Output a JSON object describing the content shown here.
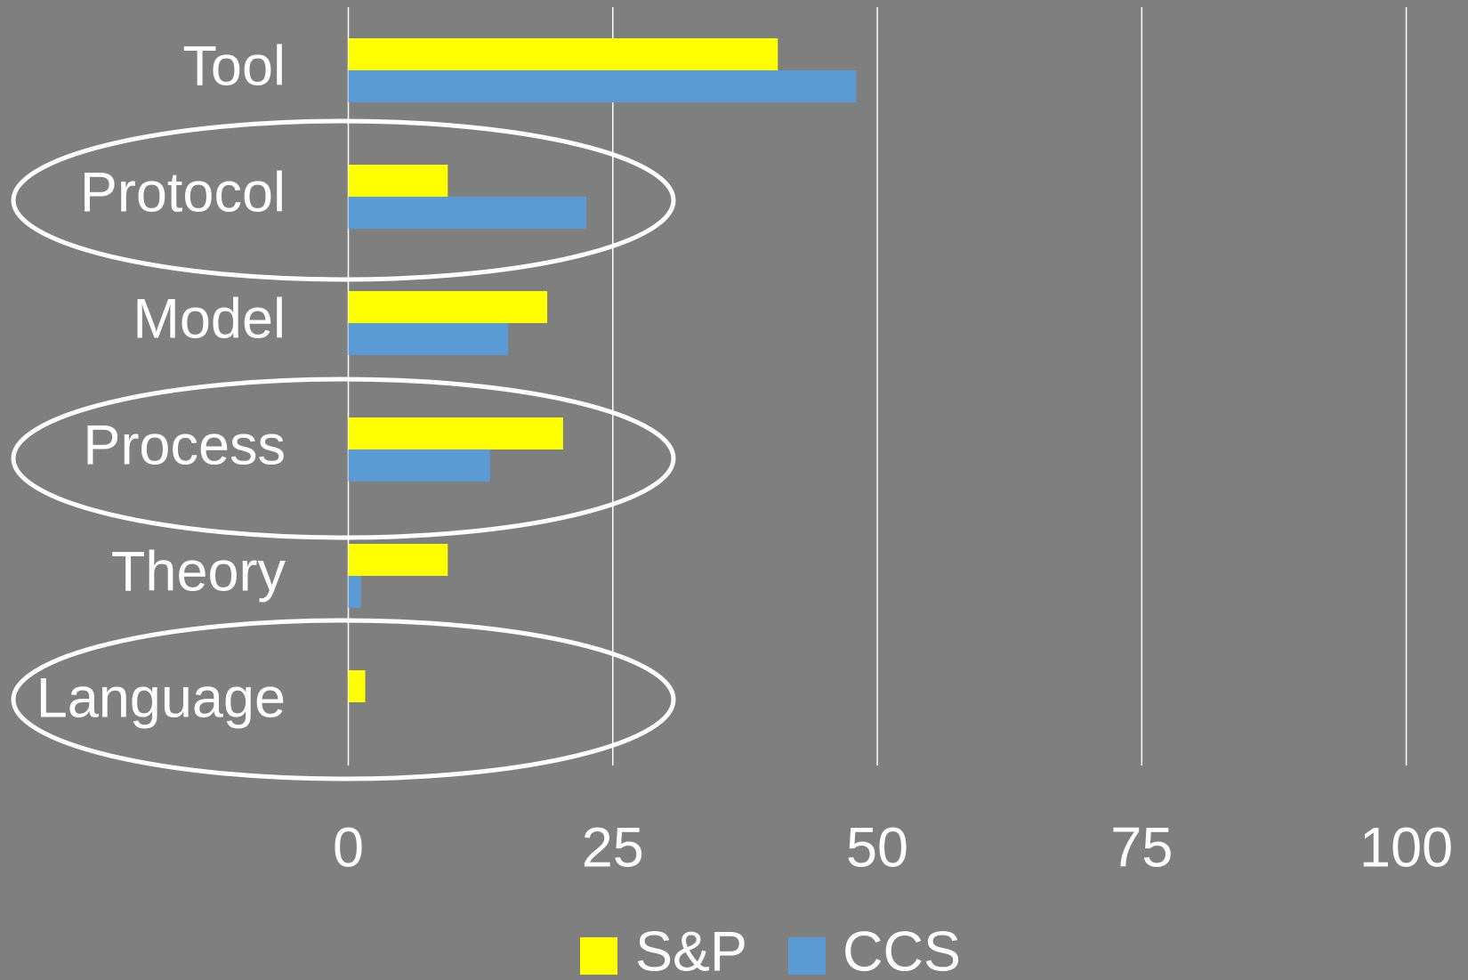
{
  "chart_data": {
    "type": "bar",
    "orientation": "horizontal",
    "categories": [
      "Tool",
      "Protocol",
      "Model",
      "Process",
      "Theory",
      "Language"
    ],
    "series": [
      {
        "name": "S&P",
        "color": "#ffff00",
        "values": [
          40.6,
          9.4,
          18.8,
          20.3,
          9.4,
          1.6
        ]
      },
      {
        "name": "CCS",
        "color": "#5b9bd5",
        "values": [
          48,
          22.5,
          15.1,
          13.4,
          1.2,
          0
        ]
      }
    ],
    "xlim": [
      0,
      100
    ],
    "xticks": [
      0,
      25,
      50,
      75,
      100
    ],
    "grid": true,
    "legend": "bottom"
  }
}
